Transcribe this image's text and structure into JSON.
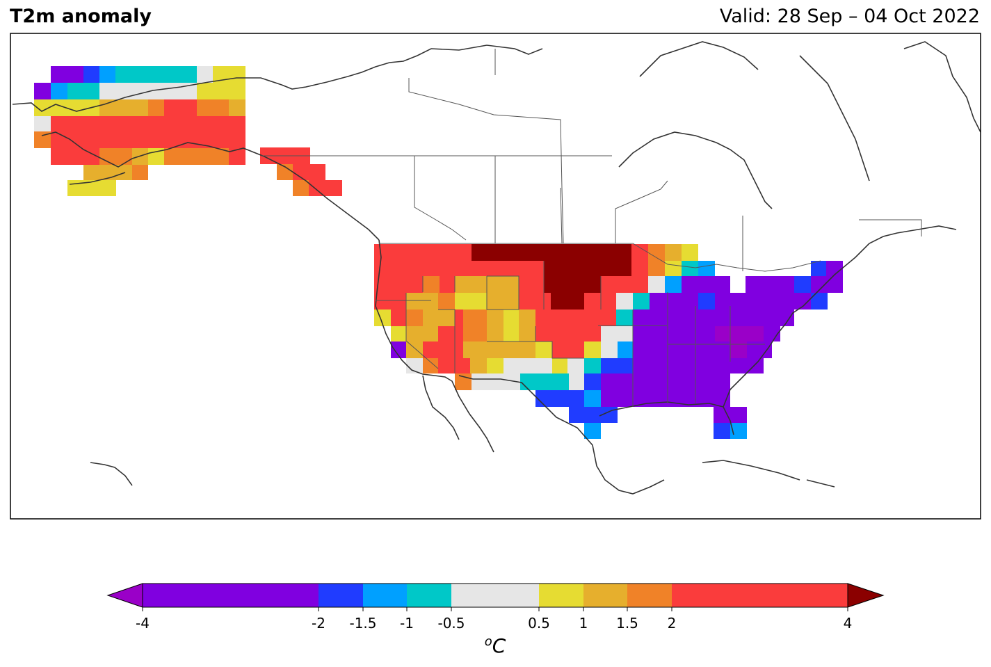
{
  "header": {
    "title": "T2m anomaly",
    "valid": "Valid: 28 Sep – 04 Oct 2022"
  },
  "map": {
    "variable": "2 m temperature anomaly",
    "region": "North America",
    "colors": {
      "below_-4": "#9a00c8",
      "-4_-2": "#8000e0",
      "-2_-1.5": "#203cff",
      "-1.5_-1": "#00a0ff",
      "-1_-0.5": "#00c8c8",
      "-0.5_0.5": "#e6e6e6",
      "0.5_1": "#e6dc32",
      "1_1.5": "#e6af2d",
      "1.5_2": "#f08228",
      "2_4": "#fa3c3c",
      "above_4": "#8b0000"
    }
  },
  "colorbar": {
    "ticks": [
      "-4",
      "-2",
      "-1.5",
      "-1",
      "-0.5",
      "0.5",
      "1",
      "1.5",
      "2",
      "4"
    ],
    "unit_base": "C",
    "unit_sup": "o",
    "segments": [
      "#8000e0",
      "#203cff",
      "#00a0ff",
      "#00c8c8",
      "#e6e6e6",
      "#e6dc32",
      "#e6af2d",
      "#f08228",
      "#fa3c3c"
    ],
    "extend_low_color": "#9a00c8",
    "extend_high_color": "#8b0000"
  }
}
